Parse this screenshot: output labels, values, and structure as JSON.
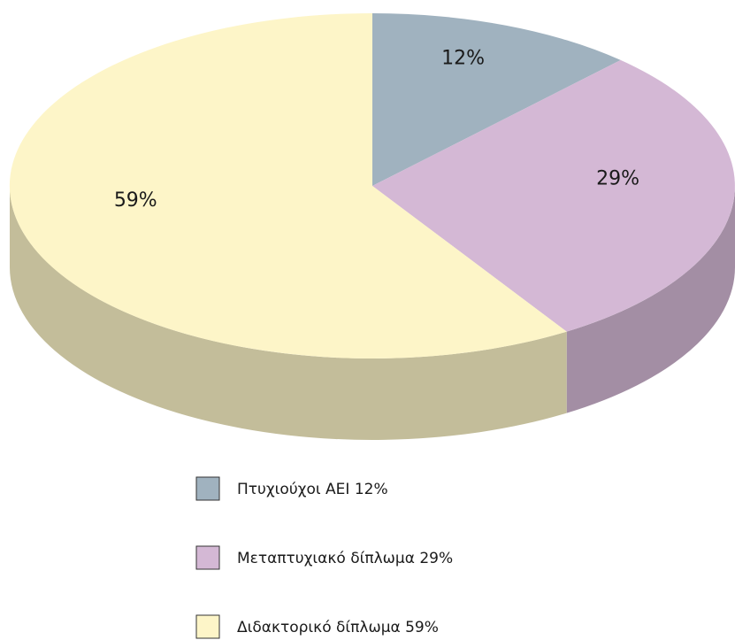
{
  "chart_data": {
    "type": "pie",
    "categories": [
      "Πτυχιούχοι ΑΕΙ 12%",
      "Μεταπτυχιακό δίπλωμα 29%",
      "Διδακτορικό δίπλωμα 59%"
    ],
    "values": [
      12,
      29,
      59
    ],
    "value_labels": [
      "12%",
      "29%",
      "59%"
    ],
    "colors": [
      "#a0b2bf",
      "#d4b8d5",
      "#fdf5c8"
    ]
  }
}
